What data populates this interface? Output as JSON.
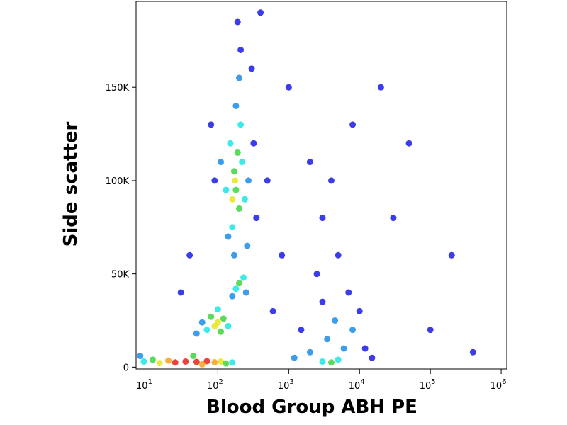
{
  "chart_data": {
    "type": "scatter",
    "xlabel": "Blood Group ABH PE",
    "ylabel": "Side scatter",
    "xscale": "log",
    "xlim": [
      7,
      1200000
    ],
    "ylim": [
      -1000,
      196000
    ],
    "xticks": [
      {
        "value": 10,
        "label": "10",
        "sup": "1"
      },
      {
        "value": 100,
        "label": "10",
        "sup": "2"
      },
      {
        "value": 1000,
        "label": "10",
        "sup": "3"
      },
      {
        "value": 10000,
        "label": "10",
        "sup": "4"
      },
      {
        "value": 100000,
        "label": "10",
        "sup": "5"
      },
      {
        "value": 1000000,
        "label": "10",
        "sup": "6"
      }
    ],
    "yticks": [
      0,
      {
        "value": 50000,
        "label": "50K"
      },
      {
        "value": 100000,
        "label": "100K"
      },
      {
        "value": 150000,
        "label": "150K"
      }
    ],
    "x": [
      25,
      35,
      50,
      70,
      90,
      20,
      15,
      110,
      130,
      12,
      9,
      8,
      160,
      45,
      60,
      100,
      90,
      120,
      80,
      110,
      70,
      140,
      60,
      100,
      50,
      200,
      180,
      230,
      160,
      250,
      180,
      170,
      190,
      200,
      160,
      175,
      150,
      220,
      130,
      240,
      160,
      210,
      180,
      110,
      270,
      140,
      170,
      200,
      90,
      320,
      210,
      190,
      80,
      350,
      260,
      3000,
      4000,
      5000,
      2000,
      6000,
      3500,
      8000,
      1500,
      4500,
      3000,
      7000,
      2500,
      10000,
      1200,
      12000,
      5000,
      3000,
      4000,
      2000,
      15000,
      600,
      800,
      500,
      1000,
      30000,
      50000,
      100000,
      200000,
      400000,
      20000,
      8000,
      40,
      30,
      400,
      300
    ],
    "y": [
      2500,
      3000,
      2800,
      3200,
      2600,
      3500,
      2200,
      3000,
      2000,
      4000,
      3000,
      6000,
      2500,
      6000,
      1500,
      24000,
      22000,
      26000,
      27000,
      19000,
      20000,
      22000,
      24000,
      31000,
      18000,
      45000,
      42000,
      48000,
      38000,
      40000,
      95000,
      105000,
      115000,
      85000,
      90000,
      100000,
      120000,
      110000,
      95000,
      90000,
      75000,
      130000,
      140000,
      110000,
      100000,
      70000,
      60000,
      155000,
      100000,
      120000,
      170000,
      185000,
      130000,
      80000,
      65000,
      3000,
      2500,
      4000,
      8000,
      10000,
      15000,
      20000,
      20000,
      25000,
      35000,
      40000,
      50000,
      30000,
      5000,
      10000,
      60000,
      80000,
      100000,
      110000,
      5000,
      30000,
      60000,
      100000,
      150000,
      80000,
      120000,
      20000,
      60000,
      8000,
      150000,
      130000,
      60000,
      40000,
      190000,
      160000
    ],
    "colors": [
      "#e8221a",
      "#e8221a",
      "#e8221a",
      "#e8221a",
      "#f5a21a",
      "#f5a21a",
      "#e6e61a",
      "#e6e61a",
      "#3fd43f",
      "#3fd43f",
      "#1ae6e6",
      "#1a8ce6",
      "#1ae6e6",
      "#3fd43f",
      "#f5a21a",
      "#e6e61a",
      "#e6e61a",
      "#3fd43f",
      "#3fd43f",
      "#3fd43f",
      "#1ae6e6",
      "#1ae6e6",
      "#1a8ce6",
      "#1ae6e6",
      "#1a8ce6",
      "#3fd43f",
      "#1ae6e6",
      "#1ae6e6",
      "#1a8ce6",
      "#1a8ce6",
      "#3fd43f",
      "#3fd43f",
      "#3fd43f",
      "#3fd43f",
      "#e6e61a",
      "#e6e61a",
      "#1ae6e6",
      "#1ae6e6",
      "#1ae6e6",
      "#1ae6e6",
      "#1ae6e6",
      "#1ae6e6",
      "#1a8ce6",
      "#1a8ce6",
      "#1a8ce6",
      "#1a8ce6",
      "#1a8ce6",
      "#1a8ce6",
      "#1a1ae6",
      "#1a1ae6",
      "#1a1ae6",
      "#1a1ae6",
      "#1a1ae6",
      "#1a1ae6",
      "#1a8ce6",
      "#1ae6e6",
      "#3fd43f",
      "#1ae6e6",
      "#1a8ce6",
      "#1a8ce6",
      "#1a8ce6",
      "#1a8ce6",
      "#1a1ae6",
      "#1a8ce6",
      "#1a1ae6",
      "#1a1ae6",
      "#1a1ae6",
      "#1a1ae6",
      "#1a8ce6",
      "#1a1ae6",
      "#1a1ae6",
      "#1a1ae6",
      "#1a1ae6",
      "#1a1ae6",
      "#1a1ae6",
      "#1a1ae6",
      "#1a1ae6",
      "#1a1ae6",
      "#1a1ae6",
      "#1a1ae6",
      "#1a1ae6",
      "#1a1ae6",
      "#1a1ae6",
      "#1a1ae6",
      "#1a1ae6",
      "#1a1ae6",
      "#1a1ae6",
      "#1a1ae6",
      "#1a1ae6",
      "#1a1ae6"
    ]
  }
}
